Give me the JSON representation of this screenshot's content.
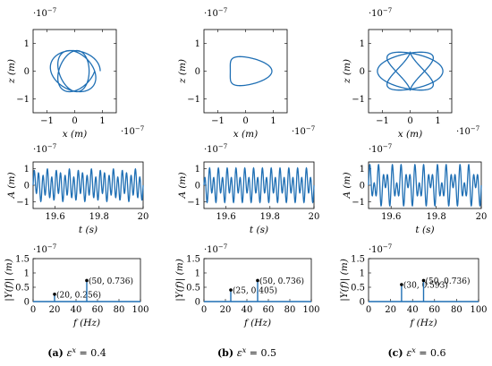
{
  "colors": {
    "series": "#1f6fb4",
    "axes": "#000000",
    "background": "#ffffff"
  },
  "labels": {
    "exponent": "·10",
    "exponent_power": "−7",
    "orbit_x": "x (m)",
    "orbit_z": "z (m)",
    "time_x": "t (s)",
    "time_y": "A (m)",
    "fft_x": "f (Hz)",
    "fft_y": "|Y(f)| (m)"
  },
  "panels": [
    {
      "caption_letter": "(a)",
      "caption_text": "ε",
      "caption_sup": "x",
      "caption_value": " = 0.4"
    },
    {
      "caption_letter": "(b)",
      "caption_text": "ε",
      "caption_sup": "x",
      "caption_value": " = 0.5"
    },
    {
      "caption_letter": "(c)",
      "caption_text": "ε",
      "caption_sup": "x",
      "caption_value": " = 0.6"
    }
  ],
  "chart_data": [
    {
      "type": "line",
      "panel": "a-orbit",
      "xlabel": "x (m)",
      "ylabel": "z (m)",
      "xlim": [
        -1.5,
        1.5
      ],
      "ylim": [
        -1.5,
        1.5
      ],
      "xticks": [
        -1,
        0,
        1
      ],
      "yticks": [
        -1,
        0,
        1
      ],
      "scale_note": "·10^−7",
      "orbit": {
        "amplitudes": [
          0.92,
          0.78
        ],
        "freq_ratio": 1.25,
        "radius": 0.72
      }
    },
    {
      "type": "line",
      "panel": "b-orbit",
      "xlabel": "x (m)",
      "ylabel": "z (m)",
      "xlim": [
        -1.5,
        1.5
      ],
      "ylim": [
        -1.5,
        1.5
      ],
      "xticks": [
        -1,
        0,
        1
      ],
      "yticks": [
        -1,
        0,
        1
      ],
      "scale_note": "·10^−7",
      "orbit": {
        "amplitudes": [
          0.95,
          0.55
        ],
        "freq_ratio": 2,
        "radius": 0.75
      }
    },
    {
      "type": "line",
      "panel": "c-orbit",
      "xlabel": "x (m)",
      "ylabel": "z (m)",
      "xlim": [
        -1.5,
        1.5
      ],
      "ylim": [
        -1.5,
        1.5
      ],
      "xticks": [
        -1,
        0,
        1
      ],
      "yticks": [
        -1,
        0,
        1
      ],
      "scale_note": "·10^−7",
      "orbit": {
        "amplitudes": [
          1.18,
          0.72
        ],
        "freq_ratio": 1.666667,
        "radius": 0.74
      }
    },
    {
      "type": "line",
      "panel": "a-time",
      "xlabel": "t (s)",
      "ylabel": "A (m)",
      "xlim": [
        19.5,
        20
      ],
      "ylim": [
        -1.4,
        1.4
      ],
      "xticks": [
        19.6,
        19.8,
        20
      ],
      "yticks": [
        -1,
        0,
        1
      ],
      "scale_note": "·10^−7",
      "components": [
        {
          "freq_hz": 50,
          "amp": 0.736
        },
        {
          "freq_hz": 20,
          "amp": 0.256
        }
      ]
    },
    {
      "type": "line",
      "panel": "b-time",
      "xlabel": "t (s)",
      "ylabel": "A (m)",
      "xlim": [
        19.5,
        20
      ],
      "ylim": [
        -1.4,
        1.4
      ],
      "xticks": [
        19.6,
        19.8,
        20
      ],
      "yticks": [
        -1,
        0,
        1
      ],
      "scale_note": "·10^−7",
      "components": [
        {
          "freq_hz": 50,
          "amp": 0.736
        },
        {
          "freq_hz": 25,
          "amp": 0.405
        }
      ]
    },
    {
      "type": "line",
      "panel": "c-time",
      "xlabel": "t (s)",
      "ylabel": "A (m)",
      "xlim": [
        19.5,
        20
      ],
      "ylim": [
        -1.4,
        1.4
      ],
      "xticks": [
        19.6,
        19.8,
        20
      ],
      "yticks": [
        -1,
        0,
        1
      ],
      "scale_note": "·10^−7",
      "components": [
        {
          "freq_hz": 50,
          "amp": 0.736
        },
        {
          "freq_hz": 30,
          "amp": 0.593
        }
      ]
    },
    {
      "type": "bar",
      "panel": "a-fft",
      "xlabel": "f (Hz)",
      "ylabel": "|Y(f)| (m)",
      "xlim": [
        0,
        100
      ],
      "ylim": [
        0,
        1.5
      ],
      "xticks": [
        0,
        20,
        40,
        60,
        80,
        100
      ],
      "yticks": [
        0,
        0.5,
        1,
        1.5
      ],
      "ytick_labels": [
        "0",
        "0.5",
        "1",
        "1.5"
      ],
      "scale_note": "·10^−7",
      "peaks": [
        {
          "f": 20,
          "value": 0.256,
          "label": "(20, 0.256)"
        },
        {
          "f": 50,
          "value": 0.736,
          "label": "(50, 0.736)"
        }
      ]
    },
    {
      "type": "bar",
      "panel": "b-fft",
      "xlabel": "f (Hz)",
      "ylabel": "|Y(f)| (m)",
      "xlim": [
        0,
        100
      ],
      "ylim": [
        0,
        1.5
      ],
      "xticks": [
        0,
        20,
        40,
        60,
        80,
        100
      ],
      "yticks": [
        0,
        0.5,
        1,
        1.5
      ],
      "ytick_labels": [
        "0",
        "0.5",
        "1",
        "1.5"
      ],
      "scale_note": "·10^−7",
      "peaks": [
        {
          "f": 25,
          "value": 0.405,
          "label": "(25, 0.405)"
        },
        {
          "f": 50,
          "value": 0.736,
          "label": "(50, 0.736)"
        }
      ]
    },
    {
      "type": "bar",
      "panel": "c-fft",
      "xlabel": "f (Hz)",
      "ylabel": "|Y(f)| (m)",
      "xlim": [
        0,
        100
      ],
      "ylim": [
        0,
        1.5
      ],
      "xticks": [
        0,
        20,
        40,
        60,
        80,
        100
      ],
      "yticks": [
        0,
        0.5,
        1,
        1.5
      ],
      "ytick_labels": [
        "0",
        "0.5",
        "1",
        "1.5"
      ],
      "scale_note": "·10^−7",
      "peaks": [
        {
          "f": 30,
          "value": 0.593,
          "label": "(30, 0.593)"
        },
        {
          "f": 50,
          "value": 0.736,
          "label": "(50, 0.736)"
        }
      ]
    }
  ]
}
